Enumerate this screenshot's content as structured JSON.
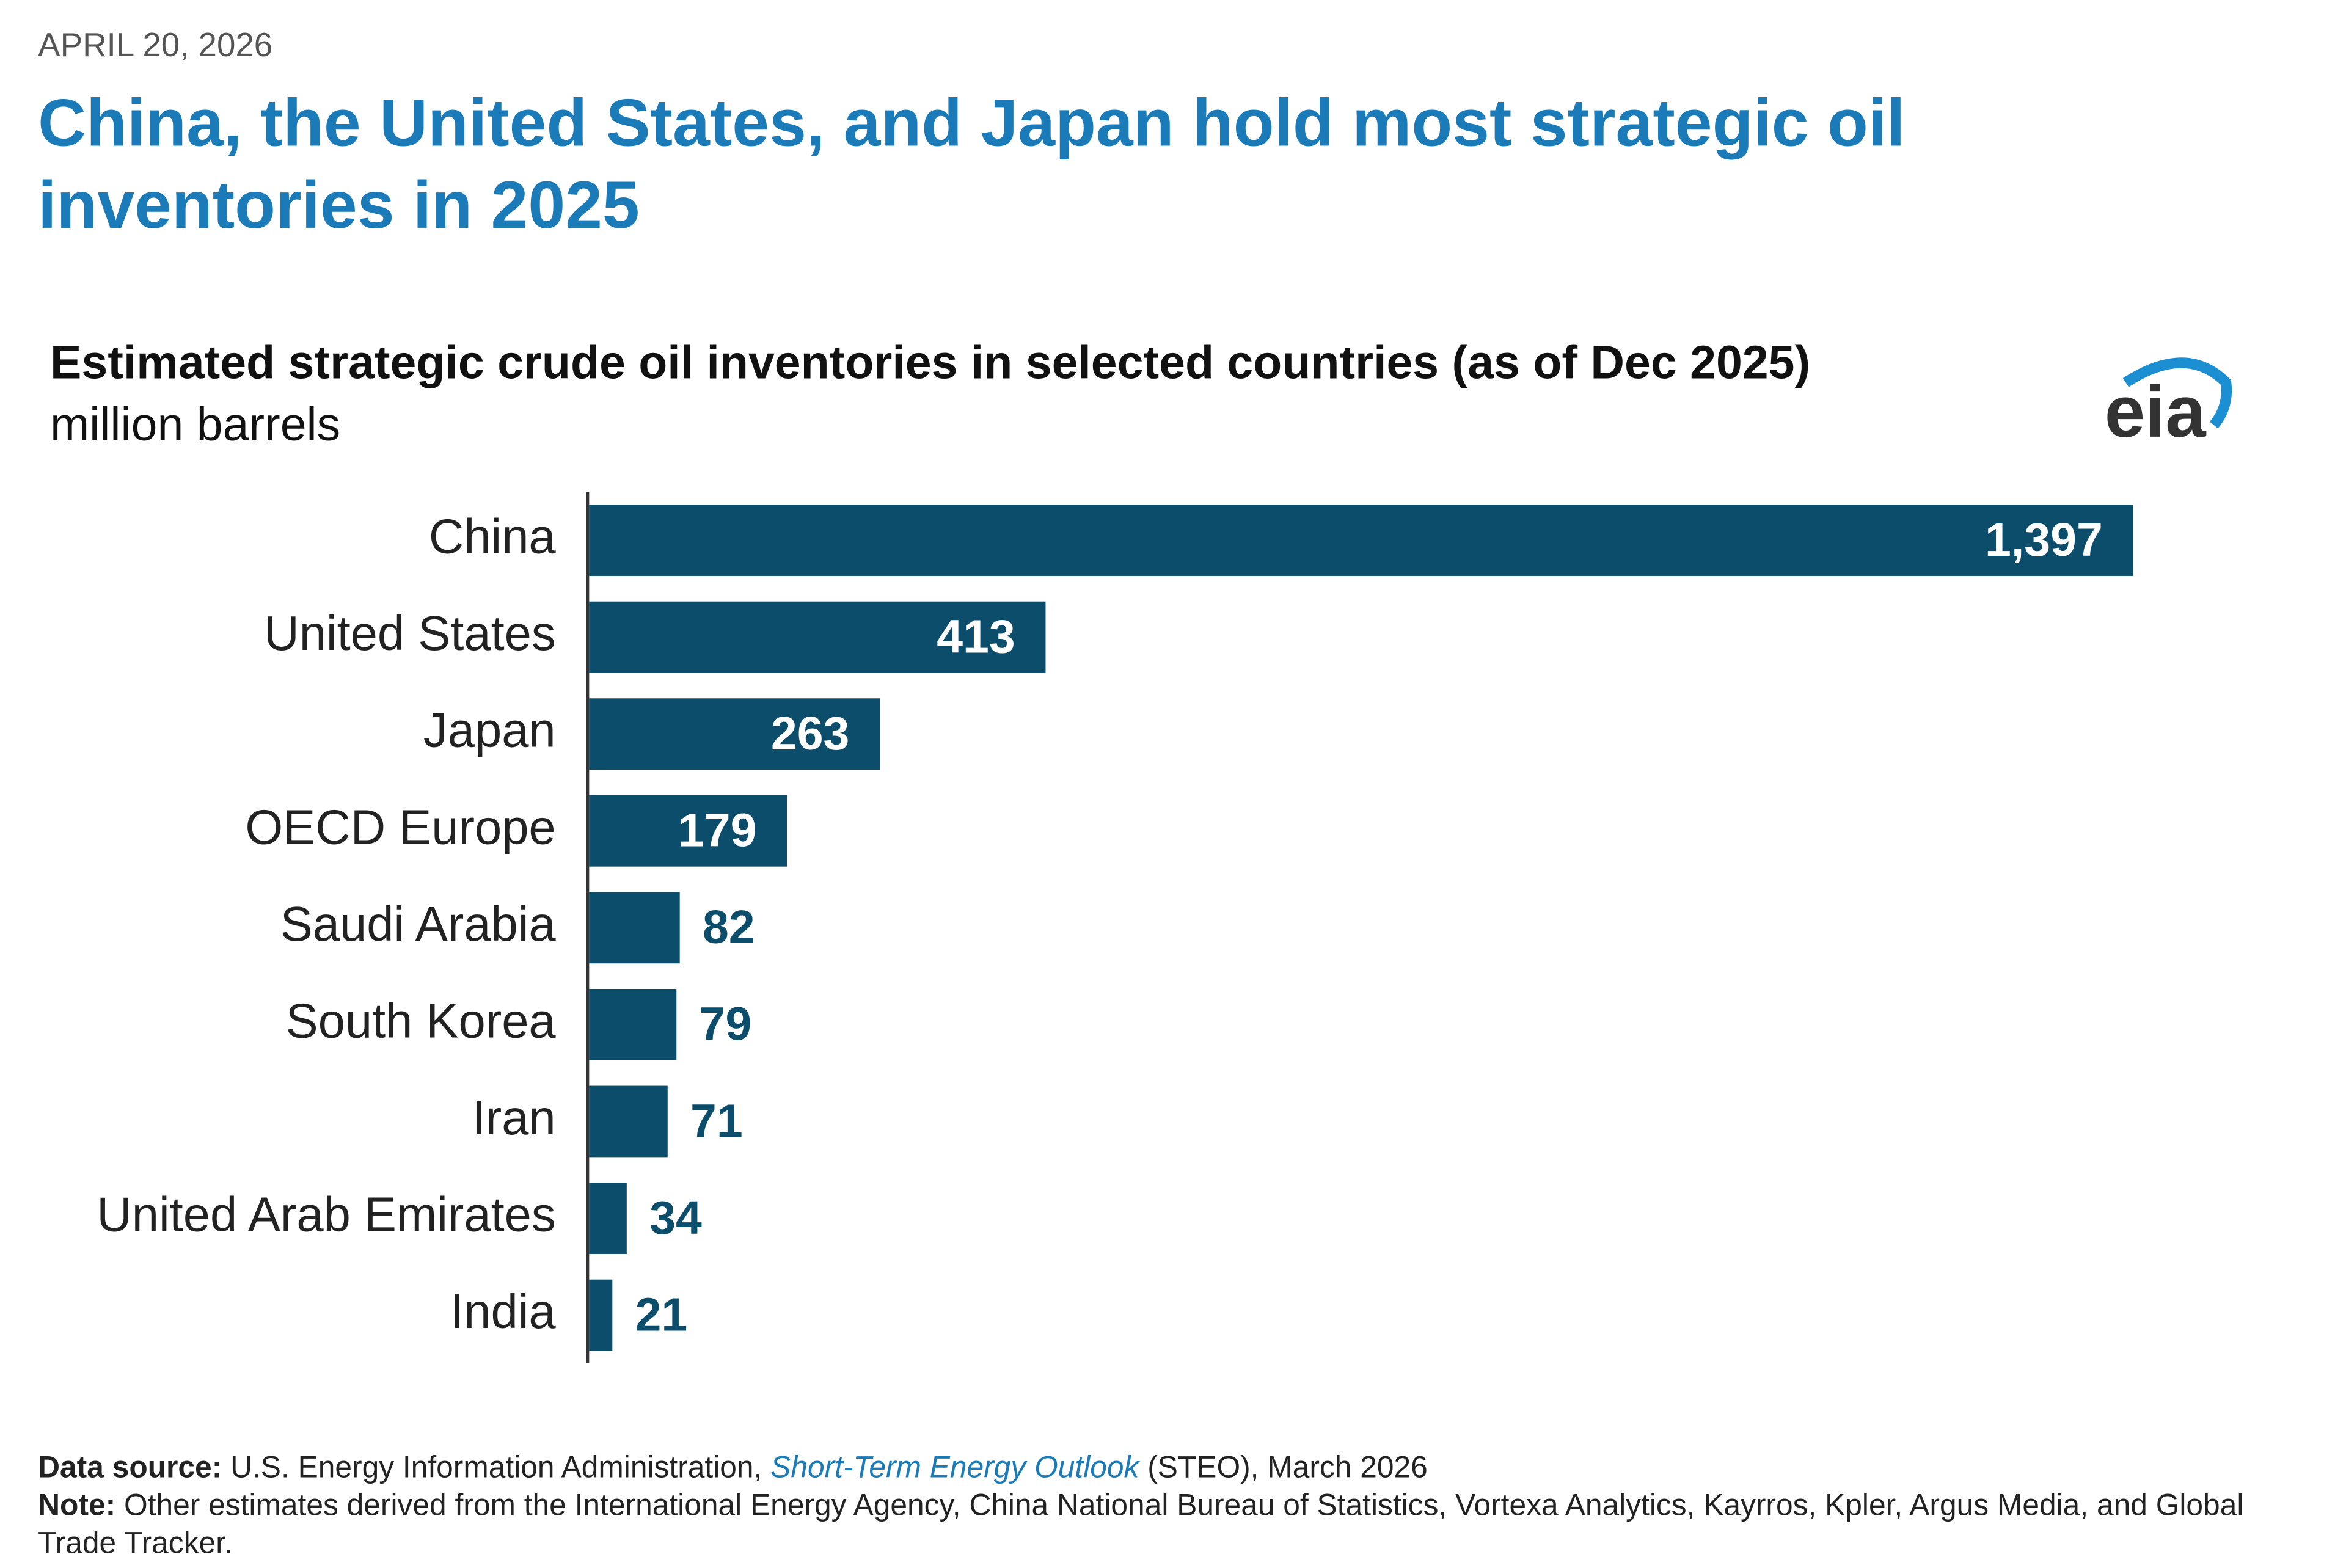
{
  "header": {
    "date": "APRIL 20, 2026",
    "headline": "China, the United States, and Japan hold most strategic oil inventories in 2025"
  },
  "chart_data": {
    "type": "hbar",
    "title": "Estimated strategic crude oil inventories in selected countries (as of Dec 2025)",
    "subtitle": "million barrels",
    "categories": [
      "China",
      "United States",
      "Japan",
      "OECD Europe",
      "Saudi Arabia",
      "South Korea",
      "Iran",
      "United Arab Emirates",
      "India"
    ],
    "values": [
      1397,
      413,
      263,
      179,
      82,
      79,
      71,
      34,
      21
    ],
    "value_labels": [
      "1,397",
      "413",
      "263",
      "179",
      "82",
      "79",
      "71",
      "34",
      "21"
    ],
    "color": "#0b4d6b",
    "xlim": [
      0,
      1400
    ]
  },
  "logo": "eia",
  "footer": {
    "source_label": "Data source:",
    "source_text": "U.S. Energy Information Administration,",
    "source_link": "Short-Term Energy Outlook",
    "source_suffix": "(STEO), March 2026",
    "note_label": "Note:",
    "note_text": "Other estimates derived from the International Energy Agency, China National Bureau of Statistics, Vortexa Analytics, Kayrros, Kpler, Argus Media, and Global Trade Tracker."
  }
}
